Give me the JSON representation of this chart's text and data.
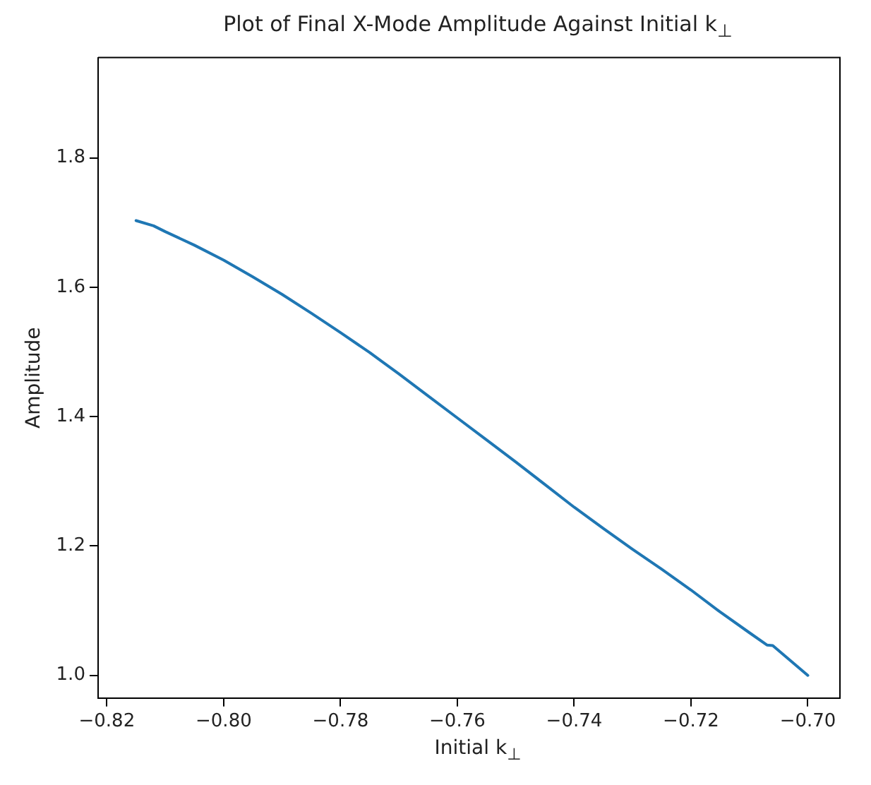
{
  "chart_data": {
    "type": "line",
    "title": "Plot of Final X-Mode Amplitude Against Initial k$_{⊥}$",
    "xlabel": "Initial k$_{⊥}$",
    "ylabel": "Amplitude",
    "x": [
      -0.815,
      -0.812,
      -0.81,
      -0.805,
      -0.8,
      -0.795,
      -0.79,
      -0.785,
      -0.78,
      -0.775,
      -0.77,
      -0.765,
      -0.76,
      -0.755,
      -0.75,
      -0.745,
      -0.74,
      -0.735,
      -0.73,
      -0.725,
      -0.72,
      -0.715,
      -0.71,
      -0.707,
      -0.706,
      -0.7
    ],
    "series": [
      {
        "color": "#1f77b4",
        "values": [
          1.703,
          1.695,
          1.686,
          1.665,
          1.642,
          1.616,
          1.589,
          1.56,
          1.53,
          1.499,
          1.466,
          1.432,
          1.398,
          1.364,
          1.33,
          1.295,
          1.26,
          1.227,
          1.195,
          1.164,
          1.132,
          1.098,
          1.066,
          1.047,
          1.046,
          1.0
        ]
      }
    ],
    "xlim": [
      -0.8215,
      -0.6945
    ],
    "ylim": [
      0.965,
      1.955
    ],
    "xticks": [
      {
        "value": -0.82,
        "label": "−0.82"
      },
      {
        "value": -0.8,
        "label": "−0.80"
      },
      {
        "value": -0.78,
        "label": "−0.78"
      },
      {
        "value": -0.76,
        "label": "−0.76"
      },
      {
        "value": -0.74,
        "label": "−0.74"
      },
      {
        "value": -0.72,
        "label": "−0.72"
      },
      {
        "value": -0.7,
        "label": "−0.70"
      }
    ],
    "yticks": [
      {
        "value": 1.0,
        "label": "1.0"
      },
      {
        "value": 1.2,
        "label": "1.2"
      },
      {
        "value": 1.4,
        "label": "1.4"
      },
      {
        "value": 1.6,
        "label": "1.6"
      },
      {
        "value": 1.8,
        "label": "1.8"
      }
    ],
    "grid": false,
    "legend": false,
    "marker": "none",
    "line_style": "solid"
  }
}
